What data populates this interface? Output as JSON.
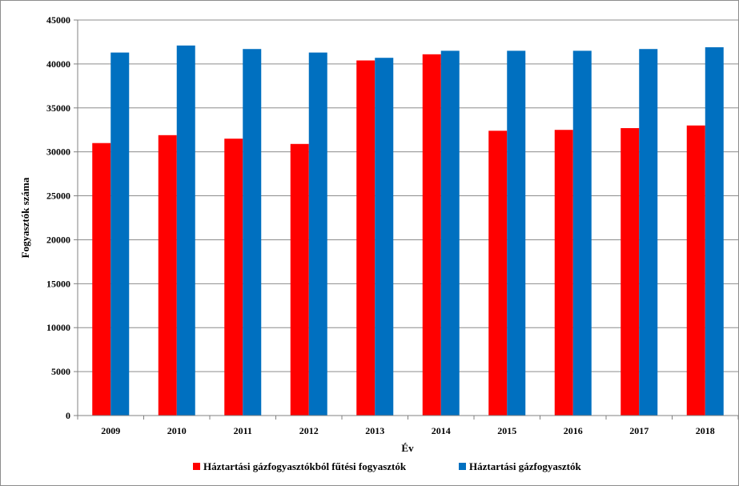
{
  "chart_data": {
    "type": "bar",
    "title": "",
    "xlabel": "Év",
    "ylabel": "Fogyasztók száma",
    "categories": [
      "2009",
      "2010",
      "2011",
      "2012",
      "2013",
      "2014",
      "2015",
      "2016",
      "2017",
      "2018"
    ],
    "series": [
      {
        "name": "Háztartási gázfogyasztókból fűtési fogyasztók",
        "color": "#ff0000",
        "values": [
          31000,
          31900,
          31500,
          30900,
          40400,
          41100,
          32400,
          32500,
          32700,
          33000
        ]
      },
      {
        "name": "Háztartási gázfogyasztók",
        "color": "#0070c0",
        "values": [
          41300,
          42100,
          41700,
          41300,
          40700,
          41500,
          41500,
          41500,
          41700,
          41900
        ]
      }
    ],
    "ylim": [
      0,
      45000
    ],
    "yticks": [
      0,
      5000,
      10000,
      15000,
      20000,
      25000,
      30000,
      35000,
      40000,
      45000
    ],
    "grid": true,
    "legend": "bottom"
  }
}
